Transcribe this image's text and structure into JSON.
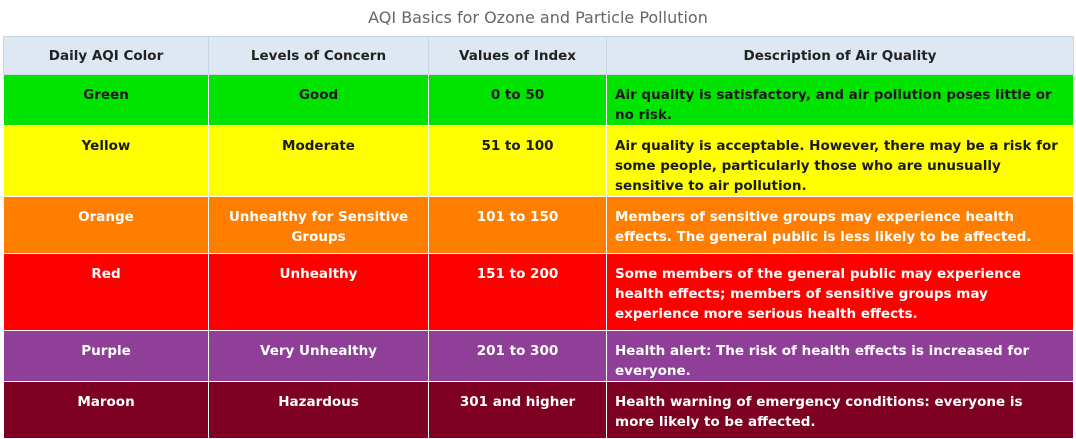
{
  "title": "AQI Basics for Ozone and Particle Pollution",
  "headers": [
    "Daily AQI Color",
    "Levels of Concern",
    "Values of Index",
    "Description of Air Quality"
  ],
  "rows": [
    {
      "color": "Green",
      "level": "Good",
      "range": "0 to 50",
      "description": "Air quality is satisfactory, and air pollution poses little or no risk.",
      "bg": "#00e400",
      "fg": "#1a1a1a"
    },
    {
      "color": "Yellow",
      "level": "Moderate",
      "range": "51 to 100",
      "description": "Air quality is acceptable. However, there may be a risk for some people, particularly those who are unusually sensitive to air pollution.",
      "bg": "#ffff00",
      "fg": "#1a1a1a"
    },
    {
      "color": "Orange",
      "level": "Unhealthy for Sensitive Groups",
      "range": "101 to 150",
      "description": "Members of sensitive groups may experience health effects. The general public is less likely to be affected.",
      "bg": "#ff7e00",
      "fg": "#ffffff"
    },
    {
      "color": "Red",
      "level": "Unhealthy",
      "range": "151 to 200",
      "description": "Some members of the general public may experience health effects; members of sensitive groups may experience more serious health effects.",
      "bg": "#ff0000",
      "fg": "#ffffff"
    },
    {
      "color": "Purple",
      "level": "Very Unhealthy",
      "range": "201 to 300",
      "description": "Health alert: The risk of health effects is increased for everyone.",
      "bg": "#8f3f97",
      "fg": "#ffffff"
    },
    {
      "color": "Maroon",
      "level": "Hazardous",
      "range": "301 and higher",
      "description": "Health warning of emergency conditions: everyone is more likely to be affected.",
      "bg": "#7e0023",
      "fg": "#ffffff"
    }
  ]
}
